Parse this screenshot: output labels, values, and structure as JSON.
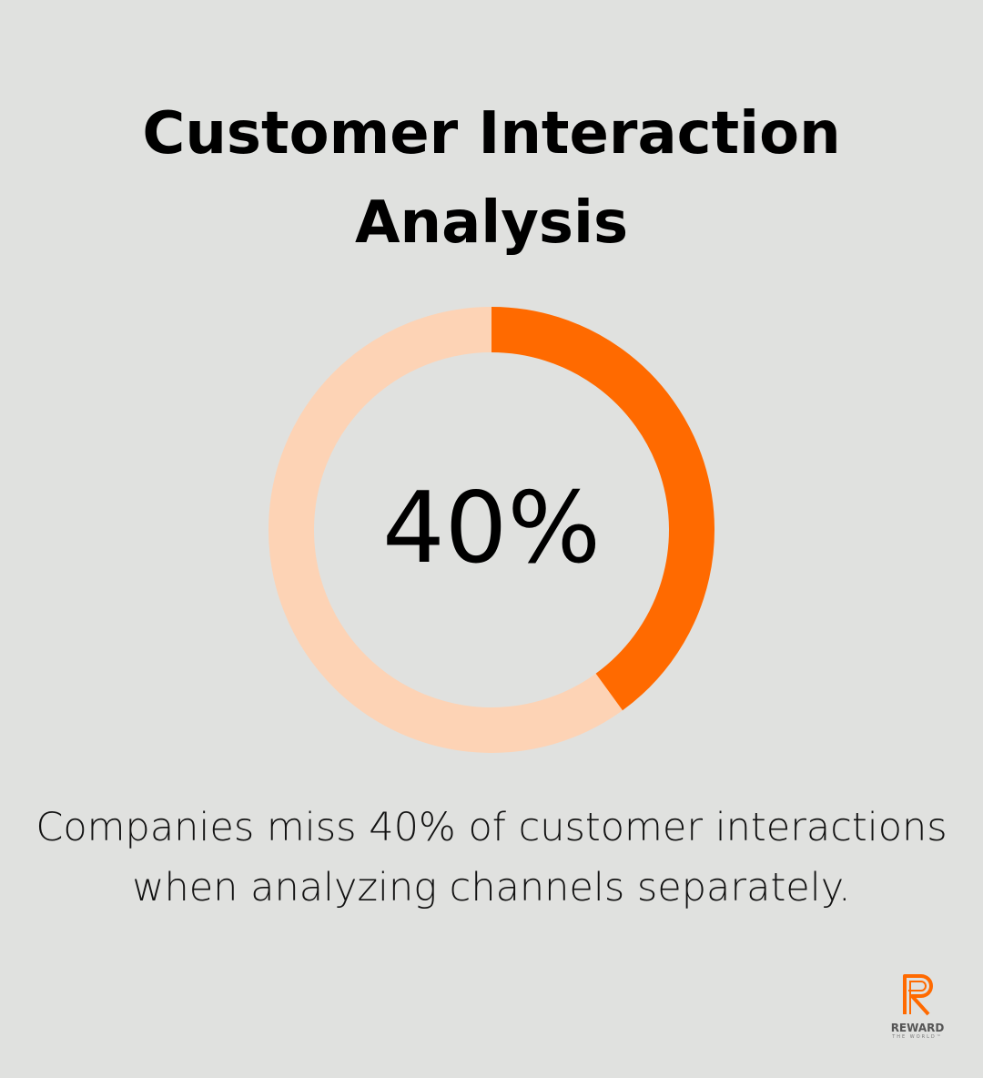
{
  "title": {
    "line1": "Customer Interaction",
    "line2": "Analysis"
  },
  "chart_data": {
    "type": "pie",
    "variant": "donut",
    "values": [
      40,
      60
    ],
    "center_label": "40%",
    "colors": {
      "highlight": "#ff6a00",
      "remainder": "#fdd3b5"
    }
  },
  "caption": {
    "line1": "Companies miss 40% of customer interactions",
    "line2": "when analyzing channels separately."
  },
  "logo": {
    "word": "REWARD",
    "sub": "THE WORLD™",
    "color": "#ff6a00"
  }
}
